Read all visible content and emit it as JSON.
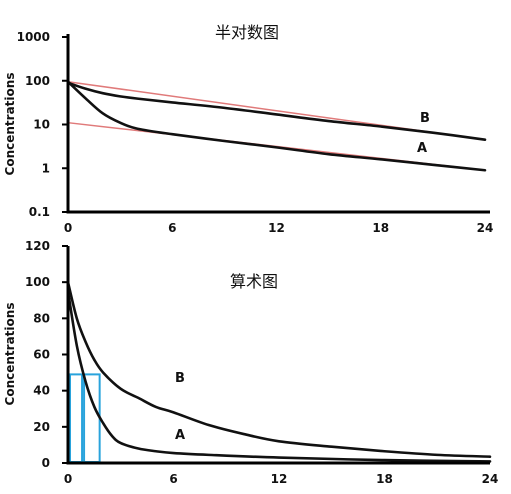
{
  "chart_data": [
    {
      "type": "line",
      "title": "半对数图",
      "ylabel": "Concentrations",
      "yscale": "log",
      "ylim": [
        0.1,
        1000
      ],
      "xlim": [
        0,
        24
      ],
      "x_ticks": [
        "0",
        "6",
        "12",
        "18",
        "24"
      ],
      "y_ticks": [
        "0.1",
        "1",
        "10",
        "100",
        "1000"
      ],
      "series": [
        {
          "name": "B",
          "x": [
            0,
            1,
            2,
            3,
            4,
            6,
            9,
            12,
            15,
            18,
            21,
            24
          ],
          "values": [
            90,
            66,
            52,
            44,
            39,
            32,
            24,
            17,
            12,
            9,
            6.5,
            4.5
          ]
        },
        {
          "name": "A",
          "x": [
            0,
            1,
            2,
            3,
            4,
            6,
            9,
            12,
            15,
            18,
            21,
            24
          ],
          "values": [
            95,
            40,
            18,
            11,
            8,
            6,
            4.2,
            3,
            2.1,
            1.6,
            1.2,
            0.9
          ]
        }
      ],
      "terminal_lines": [
        {
          "series": "B",
          "x": [
            0,
            24
          ],
          "values": [
            95,
            4.5
          ]
        },
        {
          "series": "A",
          "x": [
            0,
            24
          ],
          "values": [
            11,
            0.9
          ]
        }
      ]
    },
    {
      "type": "line",
      "title": "算术图",
      "ylabel": "Concentrations",
      "ylim": [
        0,
        120
      ],
      "xlim": [
        0,
        24
      ],
      "x_ticks": [
        "0",
        "6",
        "12",
        "18",
        "24"
      ],
      "y_ticks": [
        "0",
        "20",
        "40",
        "60",
        "80",
        "100",
        "120"
      ],
      "series": [
        {
          "name": "B",
          "x": [
            0,
            0.5,
            1,
            1.5,
            2,
            3,
            4,
            5,
            6,
            8,
            10,
            12,
            15,
            18,
            21,
            24
          ],
          "values": [
            100,
            80,
            67,
            57,
            50,
            41,
            36,
            31,
            28,
            21,
            16,
            12,
            9,
            6.5,
            4.5,
            3.5
          ]
        },
        {
          "name": "A",
          "x": [
            0,
            0.5,
            1,
            1.5,
            2,
            2.5,
            3,
            4,
            5,
            6,
            8,
            12,
            18,
            24
          ],
          "values": [
            95,
            65,
            45,
            31,
            22,
            15,
            11,
            8,
            6.5,
            5.5,
            4.5,
            3,
            1.6,
            0.9
          ]
        }
      ],
      "half_life_boxes": [
        {
          "x": [
            0,
            0.8
          ],
          "y": [
            0,
            49
          ]
        },
        {
          "x": [
            0.8,
            1.8
          ],
          "y": [
            0,
            49
          ]
        }
      ]
    }
  ]
}
